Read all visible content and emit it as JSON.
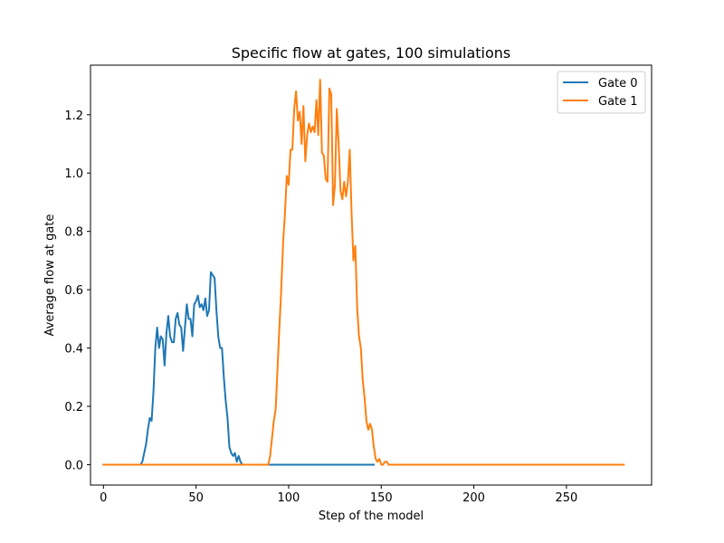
{
  "chart_data": {
    "type": "line",
    "title": "Specific flow at gates, 100 simulations",
    "xlabel": "Step of the model",
    "ylabel": "Average flow at gate",
    "xlim": [
      -7,
      296
    ],
    "ylim": [
      -0.07,
      1.37
    ],
    "xticks": [
      0,
      50,
      100,
      150,
      200,
      250
    ],
    "yticks": [
      0.0,
      0.2,
      0.4,
      0.6,
      0.8,
      1.0,
      1.2
    ],
    "grid": false,
    "legend_position": "top-right",
    "series": [
      {
        "name": "Gate 0",
        "color": "#1f77b4",
        "points": [
          [
            0,
            0
          ],
          [
            10,
            0
          ],
          [
            20,
            0
          ],
          [
            21,
            0.01
          ],
          [
            22,
            0.04
          ],
          [
            23,
            0.07
          ],
          [
            24,
            0.12
          ],
          [
            25,
            0.16
          ],
          [
            26,
            0.15
          ],
          [
            27,
            0.25
          ],
          [
            28,
            0.4
          ],
          [
            29,
            0.47
          ],
          [
            30,
            0.4
          ],
          [
            31,
            0.44
          ],
          [
            32,
            0.43
          ],
          [
            33,
            0.34
          ],
          [
            34,
            0.45
          ],
          [
            35,
            0.51
          ],
          [
            36,
            0.44
          ],
          [
            37,
            0.42
          ],
          [
            38,
            0.42
          ],
          [
            39,
            0.5
          ],
          [
            40,
            0.52
          ],
          [
            41,
            0.48
          ],
          [
            42,
            0.47
          ],
          [
            43,
            0.39
          ],
          [
            44,
            0.47
          ],
          [
            45,
            0.55
          ],
          [
            46,
            0.5
          ],
          [
            47,
            0.5
          ],
          [
            48,
            0.44
          ],
          [
            49,
            0.55
          ],
          [
            50,
            0.56
          ],
          [
            51,
            0.58
          ],
          [
            52,
            0.54
          ],
          [
            53,
            0.55
          ],
          [
            54,
            0.53
          ],
          [
            55,
            0.57
          ],
          [
            56,
            0.51
          ],
          [
            57,
            0.53
          ],
          [
            58,
            0.66
          ],
          [
            59,
            0.65
          ],
          [
            60,
            0.64
          ],
          [
            61,
            0.53
          ],
          [
            62,
            0.44
          ],
          [
            63,
            0.4
          ],
          [
            64,
            0.4
          ],
          [
            65,
            0.3
          ],
          [
            66,
            0.22
          ],
          [
            67,
            0.16
          ],
          [
            68,
            0.06
          ],
          [
            69,
            0.04
          ],
          [
            70,
            0.03
          ],
          [
            71,
            0.04
          ],
          [
            72,
            0.01
          ],
          [
            73,
            0.03
          ],
          [
            74,
            0.01
          ],
          [
            75,
            0
          ],
          [
            90,
            0
          ],
          [
            110,
            0
          ],
          [
            130,
            0
          ],
          [
            146,
            0
          ]
        ]
      },
      {
        "name": "Gate 1",
        "color": "#ff7f0e",
        "points": [
          [
            0,
            0
          ],
          [
            50,
            0
          ],
          [
            89,
            0
          ],
          [
            90,
            0.03
          ],
          [
            91,
            0.09
          ],
          [
            92,
            0.15
          ],
          [
            93,
            0.19
          ],
          [
            94,
            0.33
          ],
          [
            95,
            0.47
          ],
          [
            96,
            0.6
          ],
          [
            97,
            0.76
          ],
          [
            98,
            0.86
          ],
          [
            99,
            0.99
          ],
          [
            100,
            0.96
          ],
          [
            101,
            1.08
          ],
          [
            102,
            1.08
          ],
          [
            103,
            1.22
          ],
          [
            104,
            1.28
          ],
          [
            105,
            1.18
          ],
          [
            106,
            1.21
          ],
          [
            107,
            1.1
          ],
          [
            108,
            1.23
          ],
          [
            109,
            1.04
          ],
          [
            110,
            1.13
          ],
          [
            111,
            1.17
          ],
          [
            112,
            1.14
          ],
          [
            113,
            1.16
          ],
          [
            114,
            1.14
          ],
          [
            115,
            1.25
          ],
          [
            116,
            1.13
          ],
          [
            117,
            1.32
          ],
          [
            118,
            1.07
          ],
          [
            119,
            1.06
          ],
          [
            120,
            0.98
          ],
          [
            121,
            0.97
          ],
          [
            122,
            1.29
          ],
          [
            123,
            1.27
          ],
          [
            124,
            0.89
          ],
          [
            125,
            0.96
          ],
          [
            126,
            1.22
          ],
          [
            127,
            1.1
          ],
          [
            128,
            0.94
          ],
          [
            129,
            0.91
          ],
          [
            130,
            0.97
          ],
          [
            131,
            0.92
          ],
          [
            132,
            0.97
          ],
          [
            133,
            1.08
          ],
          [
            134,
            0.86
          ],
          [
            135,
            0.7
          ],
          [
            136,
            0.75
          ],
          [
            137,
            0.54
          ],
          [
            138,
            0.44
          ],
          [
            139,
            0.4
          ],
          [
            140,
            0.29
          ],
          [
            141,
            0.23
          ],
          [
            142,
            0.15
          ],
          [
            143,
            0.12
          ],
          [
            144,
            0.14
          ],
          [
            145,
            0.12
          ],
          [
            146,
            0.06
          ],
          [
            147,
            0.02
          ],
          [
            148,
            0.01
          ],
          [
            149,
            0.02
          ],
          [
            150,
            0.0
          ],
          [
            151,
            0.0
          ],
          [
            152,
            0.01
          ],
          [
            153,
            0.01
          ],
          [
            154,
            0.0
          ],
          [
            160,
            0
          ],
          [
            200,
            0
          ],
          [
            250,
            0
          ],
          [
            281,
            0
          ]
        ]
      }
    ]
  }
}
